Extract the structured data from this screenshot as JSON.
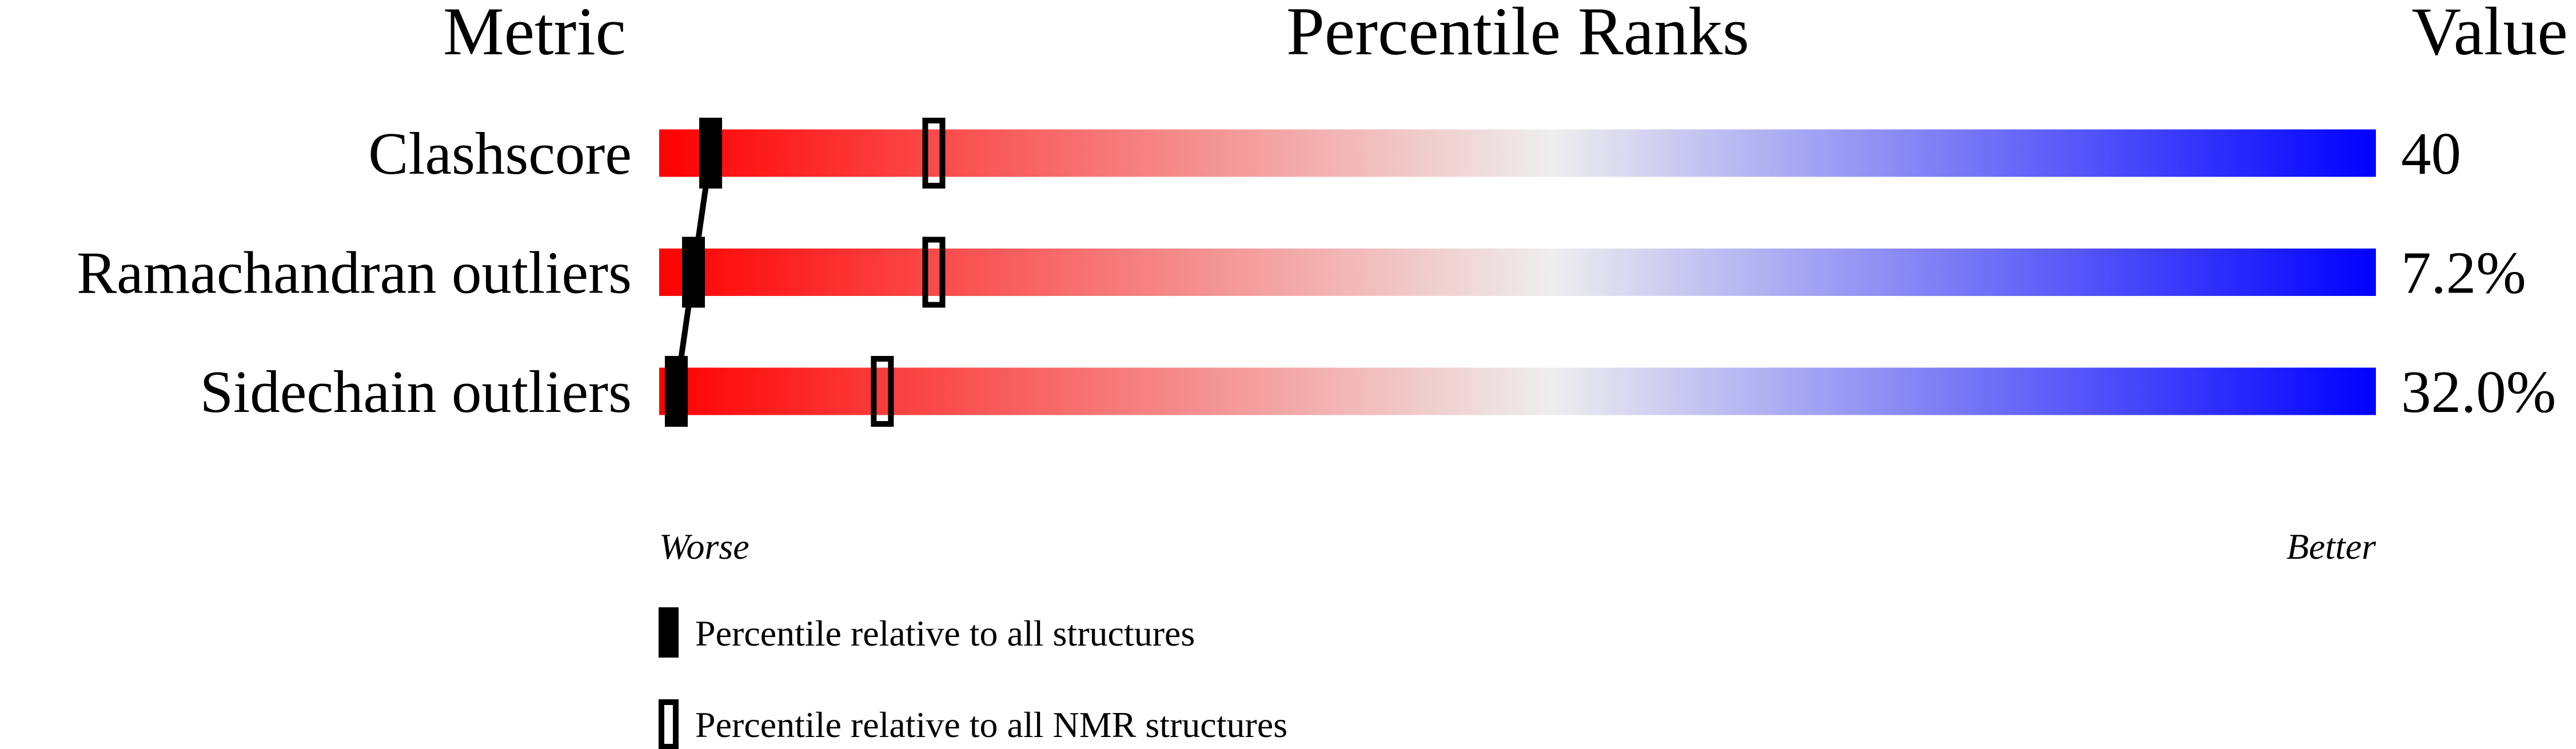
{
  "chart_data": {
    "type": "bar",
    "headers": {
      "metric": "Metric",
      "percentile": "Percentile Ranks",
      "value": "Value"
    },
    "metrics": [
      {
        "label": "Clashscore",
        "value": "40",
        "percentile_all": 3,
        "percentile_nmr": 16
      },
      {
        "label": "Ramachandran outliers",
        "value": "7.2%",
        "percentile_all": 2,
        "percentile_nmr": 16
      },
      {
        "label": "Sidechain outliers",
        "value": "32.0%",
        "percentile_all": 1,
        "percentile_nmr": 13
      }
    ],
    "xlim": [
      0,
      100
    ],
    "scale_labels": {
      "worse": "Worse",
      "better": "Better"
    },
    "legend": {
      "all": "Percentile relative to all structures",
      "nmr": "Percentile relative to all NMR structures"
    },
    "colors": {
      "worse": "#ff0000",
      "middle": "#eeeeee",
      "better": "#0000ff",
      "marker": "#000000"
    }
  }
}
